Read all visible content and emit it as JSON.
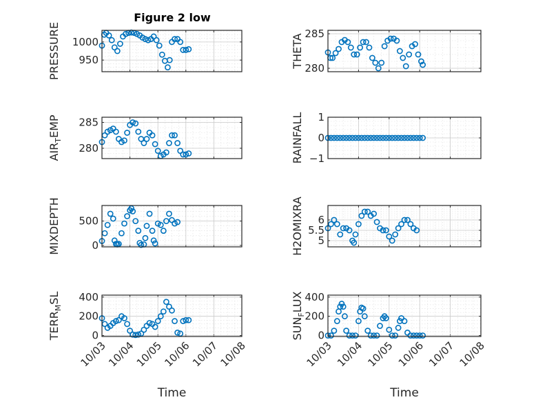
{
  "figure": {
    "title": "Figure 2 low"
  },
  "chart_data": [
    {
      "type": "scatter",
      "ylabel": "PRESSURE",
      "ylim": [
        918,
        1032
      ],
      "yticks": [
        950,
        1000
      ],
      "xlim": [
        0,
        5
      ],
      "xticks": [
        "10/03",
        "10/04",
        "10/05",
        "10/06",
        "10/07",
        "10/08"
      ],
      "xlabel": "",
      "points": [
        [
          0,
          990
        ],
        [
          0.08,
          1020
        ],
        [
          0.15,
          1025
        ],
        [
          0.25,
          1018
        ],
        [
          0.35,
          1005
        ],
        [
          0.45,
          985
        ],
        [
          0.55,
          975
        ],
        [
          0.65,
          995
        ],
        [
          0.75,
          1015
        ],
        [
          0.85,
          1022
        ],
        [
          0.95,
          1025
        ],
        [
          1.05,
          1026
        ],
        [
          1.15,
          1025
        ],
        [
          1.25,
          1022
        ],
        [
          1.35,
          1018
        ],
        [
          1.45,
          1012
        ],
        [
          1.55,
          1008
        ],
        [
          1.65,
          1005
        ],
        [
          1.75,
          1008
        ],
        [
          1.85,
          1015
        ],
        [
          1.95,
          1005
        ],
        [
          2.05,
          990
        ],
        [
          2.15,
          965
        ],
        [
          2.25,
          948
        ],
        [
          2.35,
          930
        ],
        [
          2.42,
          950
        ],
        [
          2.5,
          1000
        ],
        [
          2.6,
          1008
        ],
        [
          2.7,
          1008
        ],
        [
          2.8,
          1000
        ],
        [
          2.9,
          978
        ],
        [
          3.0,
          978
        ],
        [
          3.1,
          980
        ]
      ]
    },
    {
      "type": "scatter",
      "ylabel": "THETA",
      "ylim": [
        279.5,
        285.5
      ],
      "yticks": [
        280,
        285
      ],
      "xlim": [
        0,
        5
      ],
      "xticks": [
        "10/03",
        "10/04",
        "10/05",
        "10/06",
        "10/07",
        "10/08"
      ],
      "xlabel": "",
      "points": [
        [
          0,
          282.3
        ],
        [
          0.08,
          281.5
        ],
        [
          0.15,
          281.5
        ],
        [
          0.25,
          282.2
        ],
        [
          0.35,
          282.8
        ],
        [
          0.45,
          283.8
        ],
        [
          0.55,
          284.1
        ],
        [
          0.65,
          283.8
        ],
        [
          0.75,
          283.0
        ],
        [
          0.85,
          282.0
        ],
        [
          0.95,
          282.0
        ],
        [
          1.05,
          283.0
        ],
        [
          1.15,
          283.8
        ],
        [
          1.25,
          283.8
        ],
        [
          1.35,
          283.0
        ],
        [
          1.45,
          281.5
        ],
        [
          1.55,
          280.8
        ],
        [
          1.65,
          280.0
        ],
        [
          1.75,
          280.8
        ],
        [
          1.85,
          283.2
        ],
        [
          1.95,
          284.0
        ],
        [
          2.05,
          284.3
        ],
        [
          2.15,
          284.3
        ],
        [
          2.25,
          284.0
        ],
        [
          2.35,
          282.5
        ],
        [
          2.45,
          281.5
        ],
        [
          2.55,
          280.3
        ],
        [
          2.65,
          282.0
        ],
        [
          2.75,
          283.2
        ],
        [
          2.85,
          283.5
        ],
        [
          2.95,
          282.0
        ],
        [
          3.05,
          281.0
        ],
        [
          3.1,
          280.5
        ]
      ]
    },
    {
      "type": "scatter",
      "ylabel": "AIR_TEMP",
      "ylim": [
        278,
        286
      ],
      "yticks": [
        280,
        285
      ],
      "xlim": [
        0,
        5
      ],
      "xticks": [
        "10/03",
        "10/04",
        "10/05",
        "10/06",
        "10/07",
        "10/08"
      ],
      "xlabel": "",
      "points": [
        [
          0,
          281.2
        ],
        [
          0.1,
          282.5
        ],
        [
          0.2,
          283.2
        ],
        [
          0.3,
          283.5
        ],
        [
          0.4,
          283.8
        ],
        [
          0.5,
          283.2
        ],
        [
          0.6,
          281.8
        ],
        [
          0.7,
          281.2
        ],
        [
          0.8,
          281.5
        ],
        [
          0.9,
          283.0
        ],
        [
          1.0,
          284.5
        ],
        [
          1.1,
          285.0
        ],
        [
          1.2,
          284.8
        ],
        [
          1.3,
          283.2
        ],
        [
          1.4,
          281.8
        ],
        [
          1.5,
          281.0
        ],
        [
          1.6,
          281.8
        ],
        [
          1.7,
          283.0
        ],
        [
          1.8,
          282.5
        ],
        [
          1.9,
          280.8
        ],
        [
          2.0,
          279.5
        ],
        [
          2.1,
          278.5
        ],
        [
          2.2,
          278.8
        ],
        [
          2.3,
          279.2
        ],
        [
          2.4,
          281.0
        ],
        [
          2.5,
          282.5
        ],
        [
          2.6,
          282.5
        ],
        [
          2.7,
          281.0
        ],
        [
          2.8,
          279.5
        ],
        [
          2.9,
          278.8
        ],
        [
          3.0,
          278.8
        ],
        [
          3.1,
          279.0
        ]
      ]
    },
    {
      "type": "scatter",
      "ylabel": "RAINFALL",
      "ylim": [
        -1,
        1
      ],
      "yticks": [
        -1,
        0,
        1
      ],
      "xlim": [
        0,
        5
      ],
      "xticks": [
        "10/03",
        "10/04",
        "10/05",
        "10/06",
        "10/07",
        "10/08"
      ],
      "xlabel": "",
      "points": [
        [
          0,
          0
        ],
        [
          0.1,
          0
        ],
        [
          0.2,
          0
        ],
        [
          0.3,
          0
        ],
        [
          0.4,
          0
        ],
        [
          0.5,
          0
        ],
        [
          0.6,
          0
        ],
        [
          0.7,
          0
        ],
        [
          0.8,
          0
        ],
        [
          0.9,
          0
        ],
        [
          1.0,
          0
        ],
        [
          1.1,
          0
        ],
        [
          1.2,
          0
        ],
        [
          1.3,
          0
        ],
        [
          1.4,
          0
        ],
        [
          1.5,
          0
        ],
        [
          1.6,
          0
        ],
        [
          1.7,
          0
        ],
        [
          1.8,
          0
        ],
        [
          1.9,
          0
        ],
        [
          2.0,
          0
        ],
        [
          2.1,
          0
        ],
        [
          2.2,
          0
        ],
        [
          2.3,
          0
        ],
        [
          2.4,
          0
        ],
        [
          2.5,
          0
        ],
        [
          2.6,
          0
        ],
        [
          2.7,
          0
        ],
        [
          2.8,
          0
        ],
        [
          2.9,
          0
        ],
        [
          3.0,
          0
        ],
        [
          3.1,
          0
        ]
      ]
    },
    {
      "type": "scatter",
      "ylabel": "MIXDEPTH",
      "ylim": [
        -30,
        820
      ],
      "yticks": [
        0,
        500
      ],
      "xlim": [
        0,
        5
      ],
      "xticks": [
        "10/03",
        "10/04",
        "10/05",
        "10/06",
        "10/07",
        "10/08"
      ],
      "xlabel": "",
      "points": [
        [
          0,
          90
        ],
        [
          0.1,
          250
        ],
        [
          0.2,
          420
        ],
        [
          0.3,
          650
        ],
        [
          0.4,
          550
        ],
        [
          0.45,
          100
        ],
        [
          0.5,
          30
        ],
        [
          0.55,
          20
        ],
        [
          0.6,
          30
        ],
        [
          0.7,
          250
        ],
        [
          0.8,
          450
        ],
        [
          0.9,
          600
        ],
        [
          1.0,
          720
        ],
        [
          1.05,
          760
        ],
        [
          1.1,
          700
        ],
        [
          1.2,
          500
        ],
        [
          1.3,
          300
        ],
        [
          1.35,
          50
        ],
        [
          1.4,
          10
        ],
        [
          1.5,
          20
        ],
        [
          1.55,
          150
        ],
        [
          1.6,
          400
        ],
        [
          1.7,
          650
        ],
        [
          1.8,
          300
        ],
        [
          1.85,
          100
        ],
        [
          1.9,
          40
        ],
        [
          2.0,
          450
        ],
        [
          2.1,
          420
        ],
        [
          2.2,
          300
        ],
        [
          2.3,
          500
        ],
        [
          2.4,
          650
        ],
        [
          2.5,
          520
        ],
        [
          2.6,
          450
        ],
        [
          2.7,
          480
        ]
      ]
    },
    {
      "type": "scatter",
      "ylabel": "H2OMIXRA",
      "ylim": [
        4.7,
        6.7
      ],
      "yticks": [
        5,
        5.5,
        6
      ],
      "xlim": [
        0,
        5
      ],
      "xticks": [
        "10/03",
        "10/04",
        "10/05",
        "10/06",
        "10/07",
        "10/08"
      ],
      "xlabel": "",
      "points": [
        [
          0,
          5.6
        ],
        [
          0.1,
          5.8
        ],
        [
          0.2,
          6.0
        ],
        [
          0.3,
          5.8
        ],
        [
          0.4,
          5.3
        ],
        [
          0.5,
          5.6
        ],
        [
          0.6,
          5.6
        ],
        [
          0.7,
          5.5
        ],
        [
          0.8,
          5.0
        ],
        [
          0.85,
          4.9
        ],
        [
          0.9,
          5.3
        ],
        [
          1.0,
          5.8
        ],
        [
          1.1,
          6.2
        ],
        [
          1.2,
          6.4
        ],
        [
          1.3,
          6.4
        ],
        [
          1.4,
          6.2
        ],
        [
          1.5,
          6.3
        ],
        [
          1.6,
          5.9
        ],
        [
          1.7,
          5.6
        ],
        [
          1.8,
          5.5
        ],
        [
          1.9,
          5.5
        ],
        [
          2.0,
          5.2
        ],
        [
          2.1,
          5.0
        ],
        [
          2.2,
          5.3
        ],
        [
          2.3,
          5.6
        ],
        [
          2.4,
          5.8
        ],
        [
          2.5,
          6.0
        ],
        [
          2.6,
          6.0
        ],
        [
          2.7,
          5.8
        ],
        [
          2.8,
          5.6
        ],
        [
          2.9,
          5.5
        ]
      ]
    },
    {
      "type": "scatter",
      "ylabel": "TERR_MSL",
      "ylim": [
        -10,
        420
      ],
      "yticks": [
        0,
        200,
        400
      ],
      "xlim": [
        0,
        5
      ],
      "xticks": [
        "10/03",
        "10/04",
        "10/05",
        "10/06",
        "10/07",
        "10/08"
      ],
      "xlabel": "Time",
      "points": [
        [
          0,
          180
        ],
        [
          0.1,
          120
        ],
        [
          0.2,
          80
        ],
        [
          0.3,
          100
        ],
        [
          0.4,
          130
        ],
        [
          0.5,
          150
        ],
        [
          0.6,
          160
        ],
        [
          0.7,
          200
        ],
        [
          0.8,
          180
        ],
        [
          0.9,
          120
        ],
        [
          1.0,
          50
        ],
        [
          1.1,
          10
        ],
        [
          1.2,
          5
        ],
        [
          1.3,
          10
        ],
        [
          1.4,
          20
        ],
        [
          1.5,
          60
        ],
        [
          1.6,
          100
        ],
        [
          1.7,
          130
        ],
        [
          1.8,
          120
        ],
        [
          1.9,
          90
        ],
        [
          2.0,
          150
        ],
        [
          2.1,
          200
        ],
        [
          2.2,
          250
        ],
        [
          2.3,
          350
        ],
        [
          2.4,
          300
        ],
        [
          2.5,
          260
        ],
        [
          2.6,
          150
        ],
        [
          2.7,
          30
        ],
        [
          2.8,
          20
        ],
        [
          2.9,
          150
        ],
        [
          3.0,
          160
        ],
        [
          3.1,
          160
        ]
      ]
    },
    {
      "type": "scatter",
      "ylabel": "SUN_FLUX",
      "ylim": [
        -10,
        420
      ],
      "yticks": [
        0,
        200,
        400
      ],
      "xlim": [
        0,
        5
      ],
      "xticks": [
        "10/03",
        "10/04",
        "10/05",
        "10/06",
        "10/07",
        "10/08"
      ],
      "xlabel": "Time",
      "points": [
        [
          0,
          0
        ],
        [
          0.1,
          0
        ],
        [
          0.2,
          50
        ],
        [
          0.3,
          150
        ],
        [
          0.35,
          250
        ],
        [
          0.4,
          300
        ],
        [
          0.45,
          330
        ],
        [
          0.5,
          300
        ],
        [
          0.55,
          200
        ],
        [
          0.6,
          50
        ],
        [
          0.7,
          0
        ],
        [
          0.8,
          0
        ],
        [
          0.9,
          0
        ],
        [
          1.0,
          150
        ],
        [
          1.05,
          250
        ],
        [
          1.1,
          290
        ],
        [
          1.15,
          280
        ],
        [
          1.2,
          200
        ],
        [
          1.3,
          50
        ],
        [
          1.4,
          0
        ],
        [
          1.5,
          0
        ],
        [
          1.6,
          0
        ],
        [
          1.7,
          100
        ],
        [
          1.8,
          180
        ],
        [
          1.85,
          200
        ],
        [
          1.9,
          180
        ],
        [
          2.0,
          60
        ],
        [
          2.1,
          0
        ],
        [
          2.2,
          0
        ],
        [
          2.3,
          80
        ],
        [
          2.35,
          150
        ],
        [
          2.4,
          180
        ],
        [
          2.5,
          150
        ],
        [
          2.6,
          30
        ],
        [
          2.7,
          0
        ],
        [
          2.8,
          0
        ],
        [
          2.9,
          0
        ],
        [
          3.0,
          0
        ],
        [
          3.1,
          0
        ]
      ]
    }
  ]
}
